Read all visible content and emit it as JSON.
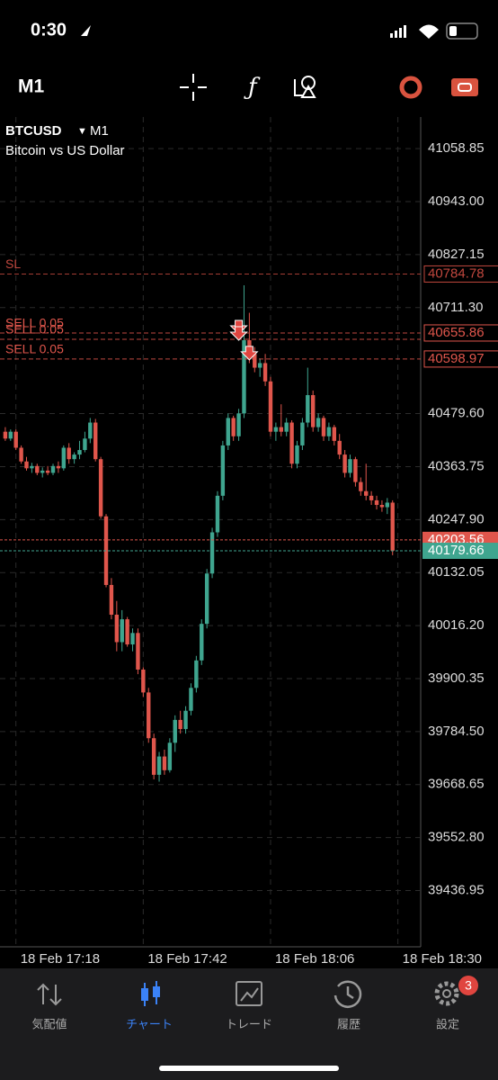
{
  "status_bar": {
    "time": "0:30"
  },
  "toolbar": {
    "timeframe": "M1"
  },
  "chart_data": {
    "type": "candlestick",
    "symbol": "BTCUSD",
    "timeframe": "M1",
    "description": "Bitcoin vs US Dollar",
    "up_color": "#3fa58f",
    "down_color": "#e0564c",
    "open": [
      40440,
      40425,
      40440,
      40405,
      40375,
      40360,
      40365,
      40350,
      40355,
      40350,
      40365,
      40360,
      40405,
      40380,
      40390,
      40400,
      40425,
      40460,
      40380,
      40255,
      40105,
      40040,
      39980,
      40030,
      39975,
      40000,
      39920,
      39870,
      39770,
      39690,
      39730,
      39700,
      39760,
      39810,
      39790,
      39830,
      39880,
      39940,
      40020,
      40130,
      40220,
      40300,
      40410,
      40470,
      40430,
      40480,
      40640,
      40610,
      40580,
      40590,
      40550,
      40440,
      40450,
      40440,
      40460,
      40370,
      40410,
      40460,
      40520,
      40450,
      40470,
      40430,
      40450,
      40420,
      40390,
      40350,
      40380,
      40330,
      40310,
      40300,
      40290,
      40280,
      40275,
      40285
    ],
    "high": [
      40450,
      40445,
      40445,
      40410,
      40385,
      40372,
      40370,
      40362,
      40365,
      40370,
      40375,
      40410,
      40415,
      40395,
      40420,
      40440,
      40470,
      40468,
      40385,
      40260,
      40120,
      40070,
      40050,
      40035,
      40010,
      40010,
      39925,
      39880,
      39780,
      39740,
      39745,
      39770,
      39820,
      39830,
      39840,
      39890,
      39950,
      40030,
      40140,
      40230,
      40310,
      40420,
      40480,
      40475,
      40490,
      40760,
      40700,
      40625,
      40600,
      40610,
      40560,
      40460,
      40500,
      40470,
      40465,
      40420,
      40470,
      40580,
      40530,
      40480,
      40475,
      40460,
      40455,
      40435,
      40400,
      40390,
      40385,
      40340,
      40370,
      40310,
      40300,
      40290,
      40295,
      40290
    ],
    "low": [
      40420,
      40420,
      40400,
      40370,
      40355,
      40350,
      40345,
      40340,
      40345,
      40345,
      40350,
      40355,
      40370,
      40370,
      40380,
      40395,
      40415,
      40375,
      40250,
      40100,
      40030,
      39960,
      39960,
      39970,
      39960,
      39910,
      39860,
      39760,
      39680,
      39675,
      39690,
      39695,
      39740,
      39780,
      39780,
      39820,
      39870,
      39930,
      40010,
      40120,
      40210,
      40290,
      40400,
      40420,
      40420,
      40470,
      40590,
      40570,
      40560,
      40540,
      40430,
      40420,
      40430,
      40430,
      40360,
      40360,
      40400,
      40450,
      40440,
      40440,
      40420,
      40420,
      40410,
      40380,
      40340,
      40340,
      40320,
      40300,
      40290,
      40280,
      40270,
      40265,
      40260,
      40170
    ],
    "close": [
      40425,
      40440,
      40405,
      40375,
      40360,
      40365,
      40350,
      40355,
      40350,
      40365,
      40360,
      40405,
      40380,
      40390,
      40400,
      40425,
      40460,
      40380,
      40255,
      40105,
      40040,
      39980,
      40030,
      39975,
      40000,
      39920,
      39870,
      39770,
      39690,
      39730,
      39700,
      39760,
      39810,
      39790,
      39830,
      39880,
      39940,
      40020,
      40130,
      40220,
      40300,
      40410,
      40470,
      40430,
      40480,
      40640,
      40610,
      40580,
      40590,
      40550,
      40440,
      40450,
      40440,
      40460,
      40370,
      40410,
      40460,
      40520,
      40450,
      40470,
      40430,
      40450,
      40420,
      40390,
      40350,
      40380,
      40330,
      40310,
      40300,
      40290,
      40280,
      40275,
      40285,
      40180
    ],
    "xlim": [
      -1,
      78.3
    ],
    "xticks": [
      {
        "value": 2,
        "label": "18 Feb 17:18"
      },
      {
        "value": 26,
        "label": "18 Feb 17:42"
      },
      {
        "value": 50,
        "label": "18 Feb 18:06"
      },
      {
        "value": 74,
        "label": "18 Feb 18:30"
      }
    ],
    "ylim": [
      39314,
      41128
    ],
    "yticks": [
      41058.85,
      {
        "value": 40943,
        "label": "40943.00"
      },
      40827.15,
      {
        "value": 40711.3,
        "label": "40711.30"
      },
      {
        "value": 40479.6,
        "label": "40479.60"
      },
      40363.75,
      {
        "value": 40247.9,
        "label": "40247.90"
      },
      40132.05,
      {
        "value": 40016.2,
        "label": "40016.20"
      },
      39900.35,
      {
        "value": 39784.5,
        "label": "39784.50"
      },
      39668.65,
      {
        "value": 39552.8,
        "label": "39552.80"
      },
      39436.95
    ],
    "grid": true,
    "levels": [
      {
        "name": "SL",
        "value": 40784.78,
        "color": "#c0473e"
      },
      {
        "name": "SELL 0.05",
        "value": 40655.86,
        "color": "#e0564c",
        "x": 44
      },
      {
        "name": "SELL 0.05",
        "value": 40642,
        "color": "#e0564c",
        "x": 44
      },
      {
        "name": "SELL 0.05",
        "value": 40598.97,
        "color": "#e0564c",
        "x": 46
      }
    ],
    "price_lines": [
      {
        "value": 40203.56,
        "color": "#e0564c"
      },
      {
        "value": 40179.66,
        "color": "#3fa58f"
      }
    ]
  },
  "tabs": [
    {
      "label": "気配値"
    },
    {
      "label": "チャート"
    },
    {
      "label": "トレード"
    },
    {
      "label": "履歴"
    },
    {
      "label": "設定",
      "badge": "3"
    }
  ]
}
